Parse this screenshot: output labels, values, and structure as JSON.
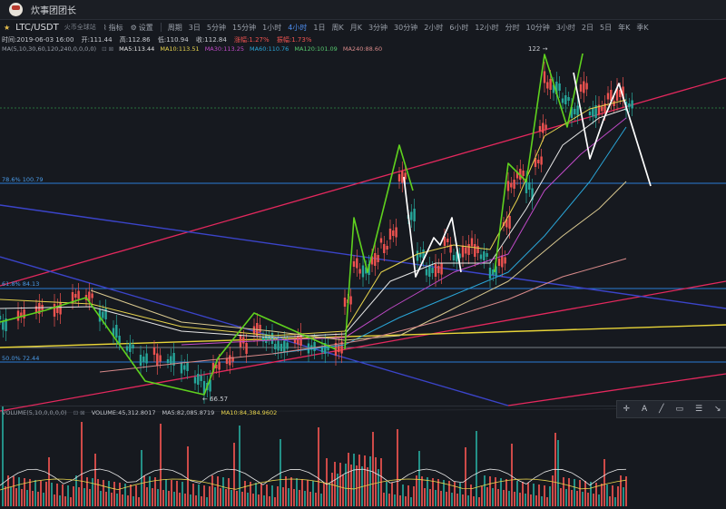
{
  "window": {
    "title": "炊事团团长"
  },
  "toolbar": {
    "symbol": "LTC/USDT",
    "exchange": "火币全球站",
    "indicator_label": "指标",
    "settings_label": "设置",
    "period_label": "周期",
    "periods": [
      "3日",
      "5分钟",
      "15分钟",
      "1小时",
      "4小时",
      "1日",
      "周K",
      "月K",
      "3分钟",
      "30分钟",
      "2小时",
      "6小时",
      "12小时",
      "分时",
      "10分钟",
      "3小时",
      "2日",
      "5日",
      "年K",
      "季K"
    ],
    "active_period": "4小时"
  },
  "ohlc": {
    "time": "时间:2019-06-03 16:00",
    "open": "开:111.44",
    "high": "高:112.86",
    "low": "低:110.94",
    "close": "收:112.84",
    "change": "涨幅:1.27%",
    "amplitude": "振幅:1.73%"
  },
  "ma": {
    "label": "MA(5,10,30,60,120,240,0,0,0,0)",
    "ma5": "MA5:113.44",
    "ma10": "MA10:113.51",
    "ma30": "MA30:113.25",
    "ma60": "MA60:110.76",
    "ma120": "MA120:101.09",
    "ma240": "MA240:88.60"
  },
  "levels": {
    "fib786": "78.6% 100.79",
    "fib618": "61.8% 84.13",
    "fib50": "50.0% 72.44",
    "low_marker": "66.57",
    "high_marker": "122"
  },
  "volume": {
    "label": "VOLUME(5,10,0,0,0,0)",
    "volume": "VOLUME:45,312.8017",
    "ma5": "MA5:82,085.8719",
    "ma10": "MA10:84,384.9602"
  },
  "colors": {
    "up": "#ef5350",
    "down": "#26a69a",
    "green_pattern": "#5fd11e",
    "white_pattern": "#ffffff",
    "ma5": "#e6e6e6",
    "ma10": "#e8d44d",
    "ma30": "#c04ac8",
    "ma60": "#2aa6d8",
    "ma120": "#d9c88f",
    "ma240": "#d88a8a",
    "level": "#2a7bd4"
  }
}
